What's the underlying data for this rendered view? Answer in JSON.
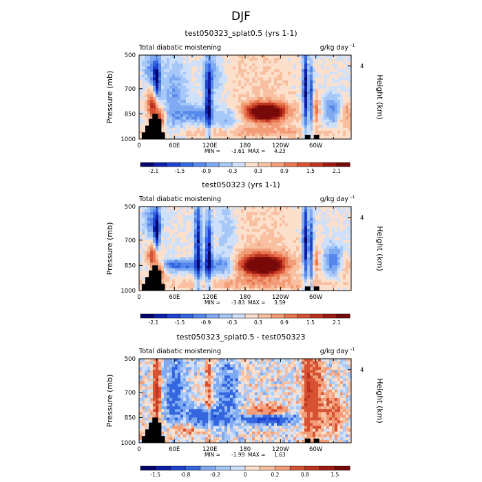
{
  "figure_title": "DJF",
  "chart_data": [
    {
      "type": "heatmap",
      "title": "test050323_splat0.5 (yrs 1-1)",
      "left_label": "Total diabatic moistening",
      "units_label": "g/kg day",
      "units_exp": "-1",
      "ylabel": "Pressure (mb)",
      "ylabel_right": "Height (km)",
      "yticks": [
        500,
        700,
        850,
        1000
      ],
      "ylim": [
        1000,
        500
      ],
      "yticks_right": [
        4
      ],
      "xticks": [
        "0",
        "60E",
        "120E",
        "180",
        "120W",
        "60W"
      ],
      "xlim": [
        0,
        360
      ],
      "min_label": "MIN =",
      "min_value": "-3.61",
      "max_label": "MAX =",
      "max_value": "4.23",
      "colorbar_labels": [
        "-2.1",
        "-1.5",
        "-0.9",
        "-0.3",
        "0.3",
        "0.9",
        "1.5",
        "2.1"
      ],
      "colorbar_levels": [
        -2.4,
        -2.1,
        -1.8,
        -1.5,
        -1.2,
        -0.9,
        -0.6,
        -0.3,
        0,
        0.3,
        0.6,
        0.9,
        1.2,
        1.5,
        1.8,
        2.1,
        2.4
      ],
      "features": [
        {
          "lon": 24,
          "p": 800,
          "value": 1.8,
          "sx": 7,
          "sp": 60
        },
        {
          "lon": 30,
          "p": 660,
          "value": -2.0,
          "sx": 4,
          "sp": 90
        },
        {
          "lon": 35,
          "p": 880,
          "value": 1.5,
          "sx": 6,
          "sp": 40
        },
        {
          "lon": 22,
          "p": 580,
          "value": -0.9,
          "sx": 10,
          "sp": 70
        },
        {
          "lon": 60,
          "p": 760,
          "value": -0.8,
          "sx": 15,
          "sp": 160
        },
        {
          "lon": 100,
          "p": 850,
          "value": -1.0,
          "sx": 20,
          "sp": 40
        },
        {
          "lon": 118,
          "p": 760,
          "value": -2.0,
          "sx": 4,
          "sp": 150
        },
        {
          "lon": 125,
          "p": 620,
          "value": -0.8,
          "sx": 12,
          "sp": 80
        },
        {
          "lon": 150,
          "p": 880,
          "value": -0.7,
          "sx": 14,
          "sp": 60
        },
        {
          "lon": 215,
          "p": 840,
          "value": 3.2,
          "sx": 18,
          "sp": 30
        },
        {
          "lon": 215,
          "p": 840,
          "value": 1.0,
          "sx": 35,
          "sp": 60
        },
        {
          "lon": 200,
          "p": 600,
          "value": 0.3,
          "sx": 50,
          "sp": 150
        },
        {
          "lon": 282,
          "p": 700,
          "value": -2.3,
          "sx": 3,
          "sp": 180
        },
        {
          "lon": 292,
          "p": 750,
          "value": -1.6,
          "sx": 3,
          "sp": 150
        },
        {
          "lon": 300,
          "p": 820,
          "value": 1.0,
          "sx": 5,
          "sp": 60
        },
        {
          "lon": 330,
          "p": 820,
          "value": -1.0,
          "sx": 12,
          "sp": 60
        },
        {
          "lon": 350,
          "p": 850,
          "value": 0.9,
          "sx": 8,
          "sp": 50
        },
        {
          "lon": 180,
          "p": 960,
          "value": 0.6,
          "sx": 120,
          "sp": 25
        }
      ],
      "terrain": [
        [
          8,
          960
        ],
        [
          14,
          920
        ],
        [
          20,
          880
        ],
        [
          26,
          850
        ],
        [
          32,
          880
        ],
        [
          38,
          960
        ],
        [
          285,
          975
        ],
        [
          300,
          975
        ]
      ]
    },
    {
      "type": "heatmap",
      "title": "test050323 (yrs 1-1)",
      "left_label": "Total diabatic moistening",
      "units_label": "g/kg day",
      "units_exp": "-1",
      "ylabel": "Pressure (mb)",
      "ylabel_right": "Height (km)",
      "yticks": [
        500,
        700,
        850,
        1000
      ],
      "ylim": [
        1000,
        500
      ],
      "yticks_right": [
        4
      ],
      "xticks": [
        "0",
        "60E",
        "120E",
        "180",
        "120W",
        "60W"
      ],
      "xlim": [
        0,
        360
      ],
      "min_label": "MIN =",
      "min_value": "-3.83",
      "max_label": "MAX =",
      "max_value": "3.59",
      "colorbar_labels": [
        "-2.1",
        "-1.5",
        "-0.9",
        "-0.3",
        "0.3",
        "0.9",
        "1.5",
        "2.1"
      ],
      "colorbar_levels": [
        -2.4,
        -2.1,
        -1.8,
        -1.5,
        -1.2,
        -0.9,
        -0.6,
        -0.3,
        0,
        0.3,
        0.6,
        0.9,
        1.2,
        1.5,
        1.8,
        2.1,
        2.4
      ],
      "features": [
        {
          "lon": 24,
          "p": 800,
          "value": 1.6,
          "sx": 7,
          "sp": 60
        },
        {
          "lon": 30,
          "p": 660,
          "value": -2.0,
          "sx": 4,
          "sp": 90
        },
        {
          "lon": 35,
          "p": 880,
          "value": 1.4,
          "sx": 6,
          "sp": 40
        },
        {
          "lon": 22,
          "p": 580,
          "value": -1.0,
          "sx": 10,
          "sp": 70
        },
        {
          "lon": 70,
          "p": 850,
          "value": -1.3,
          "sx": 30,
          "sp": 25
        },
        {
          "lon": 100,
          "p": 720,
          "value": -2.0,
          "sx": 4,
          "sp": 200
        },
        {
          "lon": 118,
          "p": 760,
          "value": -2.2,
          "sx": 4,
          "sp": 150
        },
        {
          "lon": 140,
          "p": 850,
          "value": -1.0,
          "sx": 15,
          "sp": 40
        },
        {
          "lon": 150,
          "p": 650,
          "value": -0.6,
          "sx": 12,
          "sp": 150
        },
        {
          "lon": 210,
          "p": 850,
          "value": 3.2,
          "sx": 22,
          "sp": 35
        },
        {
          "lon": 210,
          "p": 840,
          "value": 1.0,
          "sx": 40,
          "sp": 70
        },
        {
          "lon": 200,
          "p": 600,
          "value": 0.3,
          "sx": 50,
          "sp": 150
        },
        {
          "lon": 282,
          "p": 700,
          "value": -2.3,
          "sx": 3,
          "sp": 180
        },
        {
          "lon": 292,
          "p": 750,
          "value": -1.8,
          "sx": 3,
          "sp": 150
        },
        {
          "lon": 300,
          "p": 820,
          "value": 0.9,
          "sx": 5,
          "sp": 60
        },
        {
          "lon": 330,
          "p": 820,
          "value": -1.2,
          "sx": 12,
          "sp": 60
        },
        {
          "lon": 350,
          "p": 850,
          "value": 0.6,
          "sx": 8,
          "sp": 50
        },
        {
          "lon": 180,
          "p": 960,
          "value": 0.6,
          "sx": 120,
          "sp": 25
        }
      ],
      "terrain": [
        [
          8,
          960
        ],
        [
          14,
          920
        ],
        [
          20,
          880
        ],
        [
          26,
          850
        ],
        [
          32,
          880
        ],
        [
          38,
          960
        ],
        [
          285,
          975
        ],
        [
          300,
          975
        ]
      ]
    },
    {
      "type": "heatmap",
      "title": "test050323_splat0.5 - test050323",
      "left_label": "Total diabatic moistening",
      "units_label": "g/kg day",
      "units_exp": "-1",
      "ylabel": "Pressure (mb)",
      "ylabel_right": "Height (km)",
      "yticks": [
        500,
        700,
        850,
        1000
      ],
      "ylim": [
        1000,
        500
      ],
      "yticks_right": [
        4
      ],
      "xticks": [
        "0",
        "60E",
        "120E",
        "180",
        "120W",
        "60W"
      ],
      "xlim": [
        0,
        360
      ],
      "min_label": "MIN =",
      "min_value": "-1.99",
      "max_label": "MAX =",
      "max_value": "1.63",
      "colorbar_labels": [
        "-1.5",
        "-0.8",
        "-0.2",
        "0",
        "0.2",
        "0.8",
        "1.5"
      ],
      "colorbar_levels": [
        -2.0,
        -1.5,
        -1.2,
        -0.8,
        -0.4,
        -0.2,
        -0.1,
        0,
        0.1,
        0.2,
        0.4,
        0.8,
        1.2,
        1.5,
        2.0
      ],
      "features": [
        {
          "lon": 30,
          "p": 700,
          "value": 1.0,
          "sx": 4,
          "sp": 150
        },
        {
          "lon": 60,
          "p": 700,
          "value": -0.6,
          "sx": 12,
          "sp": 150
        },
        {
          "lon": 110,
          "p": 850,
          "value": -0.8,
          "sx": 20,
          "sp": 40
        },
        {
          "lon": 118,
          "p": 700,
          "value": 0.5,
          "sx": 4,
          "sp": 150
        },
        {
          "lon": 150,
          "p": 700,
          "value": -0.4,
          "sx": 15,
          "sp": 150
        },
        {
          "lon": 220,
          "p": 860,
          "value": -1.0,
          "sx": 30,
          "sp": 20
        },
        {
          "lon": 215,
          "p": 810,
          "value": 0.6,
          "sx": 20,
          "sp": 25
        },
        {
          "lon": 285,
          "p": 700,
          "value": 0.7,
          "sx": 5,
          "sp": 200
        },
        {
          "lon": 300,
          "p": 700,
          "value": 0.6,
          "sx": 8,
          "sp": 200
        },
        {
          "lon": 330,
          "p": 820,
          "value": 0.5,
          "sx": 12,
          "sp": 80
        },
        {
          "lon": 75,
          "p": 920,
          "value": 0.4,
          "sx": 20,
          "sp": 40
        }
      ],
      "terrain": [
        [
          8,
          960
        ],
        [
          14,
          920
        ],
        [
          20,
          880
        ],
        [
          26,
          850
        ],
        [
          32,
          880
        ],
        [
          38,
          960
        ],
        [
          285,
          975
        ],
        [
          300,
          975
        ]
      ]
    }
  ]
}
